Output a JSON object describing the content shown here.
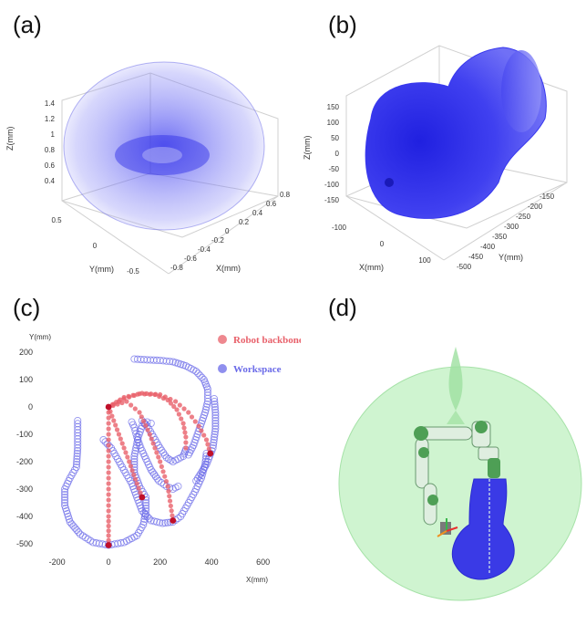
{
  "panels": {
    "a": {
      "label": "(a)",
      "zlabel": "Z(mm)",
      "ylabel": "Y(mm)",
      "xlabel": "X(mm)",
      "zticks": [
        "1.4",
        "1.2",
        "1",
        "0.8",
        "0.6",
        "0.4"
      ],
      "yticks": [
        "0.5",
        "0",
        "-0.5"
      ],
      "xticks": [
        "0.8",
        "0.6",
        "0.4",
        "0.2",
        "0",
        "-0.2",
        "-0.4",
        "-0.6",
        "-0.8"
      ]
    },
    "b": {
      "label": "(b)",
      "zlabel": "Z(mm)",
      "ylabel": "Y(mm)",
      "xlabel": "X(mm)",
      "zticks": [
        "150",
        "100",
        "50",
        "0",
        "-50",
        "-100",
        "-150"
      ],
      "xticks": [
        "-100",
        "0",
        "100"
      ],
      "yticks": [
        "-150",
        "-200",
        "-250",
        "-300",
        "-350",
        "-400",
        "-450",
        "-500"
      ]
    },
    "c": {
      "label": "(c)",
      "legend": [
        {
          "label": "Robot backbone",
          "color": "#e8606a"
        },
        {
          "label": "Workspace",
          "color": "#6a6ae8"
        }
      ]
    },
    "d": {
      "label": "(d)"
    }
  },
  "chart_data": {
    "type": "scatter",
    "title": "",
    "xlabel": "X(mm)",
    "ylabel": "Y(mm)",
    "xlim": [
      -280,
      640
    ],
    "ylim": [
      -530,
      220
    ],
    "xticks": [
      -200,
      0,
      200,
      400,
      600
    ],
    "yticks": [
      200,
      100,
      0,
      -100,
      -200,
      -300,
      -400,
      -500
    ],
    "series": [
      {
        "name": "Workspace",
        "color": "#6a6ae8",
        "style": "open-circles",
        "curves": [
          [
            [
              -120,
              -50
            ],
            [
              -120,
              -150
            ],
            [
              -125,
              -220
            ],
            [
              -150,
              -260
            ],
            [
              -170,
              -300
            ],
            [
              -170,
              -360
            ],
            [
              -150,
              -420
            ],
            [
              -110,
              -465
            ],
            [
              -60,
              -495
            ],
            [
              0,
              -505
            ],
            [
              60,
              -495
            ],
            [
              110,
              -470
            ],
            [
              135,
              -430
            ],
            [
              145,
              -380
            ],
            [
              145,
              -330
            ],
            [
              120,
              -290
            ],
            [
              100,
              -240
            ],
            [
              100,
              -180
            ],
            [
              115,
              -110
            ],
            [
              130,
              -70
            ],
            [
              150,
              -55
            ],
            [
              165,
              -60
            ]
          ],
          [
            [
              -20,
              -120
            ],
            [
              10,
              -150
            ],
            [
              35,
              -190
            ],
            [
              65,
              -240
            ],
            [
              90,
              -280
            ],
            [
              110,
              -330
            ],
            [
              130,
              -380
            ],
            [
              165,
              -415
            ],
            [
              210,
              -425
            ],
            [
              250,
              -420
            ],
            [
              280,
              -400
            ],
            [
              305,
              -360
            ],
            [
              335,
              -310
            ],
            [
              360,
              -260
            ],
            [
              375,
              -210
            ],
            [
              380,
              -170
            ]
          ],
          [
            [
              90,
              -55
            ],
            [
              100,
              -75
            ],
            [
              110,
              -110
            ],
            [
              125,
              -150
            ],
            [
              145,
              -190
            ],
            [
              165,
              -230
            ],
            [
              195,
              -270
            ],
            [
              225,
              -290
            ],
            [
              250,
              -300
            ],
            [
              270,
              -290
            ]
          ],
          [
            [
              130,
              -50
            ],
            [
              150,
              -70
            ],
            [
              175,
              -110
            ],
            [
              200,
              -150
            ],
            [
              225,
              -185
            ],
            [
              250,
              -200
            ],
            [
              290,
              -180
            ],
            [
              300,
              -155
            ]
          ],
          [
            [
              100,
              175
            ],
            [
              150,
              172
            ],
            [
              200,
              170
            ],
            [
              250,
              165
            ],
            [
              300,
              150
            ],
            [
              340,
              130
            ],
            [
              370,
              100
            ],
            [
              385,
              65
            ],
            [
              385,
              20
            ],
            [
              375,
              -20
            ],
            [
              360,
              -60
            ],
            [
              345,
              -100
            ],
            [
              330,
              -140
            ],
            [
              310,
              -175
            ]
          ],
          [
            [
              340,
              -270
            ],
            [
              380,
              -210
            ],
            [
              405,
              -150
            ],
            [
              415,
              -80
            ],
            [
              415,
              -20
            ],
            [
              410,
              30
            ]
          ]
        ]
      },
      {
        "name": "Robot backbone",
        "color": "#e8606a",
        "style": "filled-circles",
        "curves": [
          [
            [
              0,
              0
            ],
            [
              0,
              -100
            ],
            [
              0,
              -200
            ],
            [
              0,
              -300
            ],
            [
              0,
              -400
            ],
            [
              0,
              -505
            ]
          ],
          [
            [
              0,
              0
            ],
            [
              40,
              -100
            ],
            [
              80,
              -200
            ],
            [
              110,
              -280
            ],
            [
              130,
              -330
            ]
          ],
          [
            [
              0,
              0
            ],
            [
              60,
              30
            ],
            [
              120,
              48
            ],
            [
              180,
              45
            ],
            [
              230,
              25
            ],
            [
              265,
              -10
            ],
            [
              290,
              -60
            ],
            [
              300,
              -110
            ],
            [
              300,
              -150
            ]
          ],
          [
            [
              0,
              0
            ],
            [
              60,
              35
            ],
            [
              130,
              50
            ],
            [
              200,
              45
            ],
            [
              260,
              20
            ],
            [
              310,
              -20
            ],
            [
              350,
              -70
            ],
            [
              380,
              -120
            ],
            [
              395,
              -170
            ]
          ],
          [
            [
              0,
              0
            ],
            [
              70,
              20
            ],
            [
              120,
              -20
            ],
            [
              160,
              -100
            ],
            [
              200,
              -200
            ],
            [
              230,
              -290
            ],
            [
              250,
              -415
            ]
          ]
        ],
        "joints": [
          [
            0,
            0
          ],
          [
            395,
            -170
          ],
          [
            250,
            -415
          ],
          [
            0,
            -505
          ],
          [
            130,
            -330
          ]
        ]
      }
    ]
  }
}
